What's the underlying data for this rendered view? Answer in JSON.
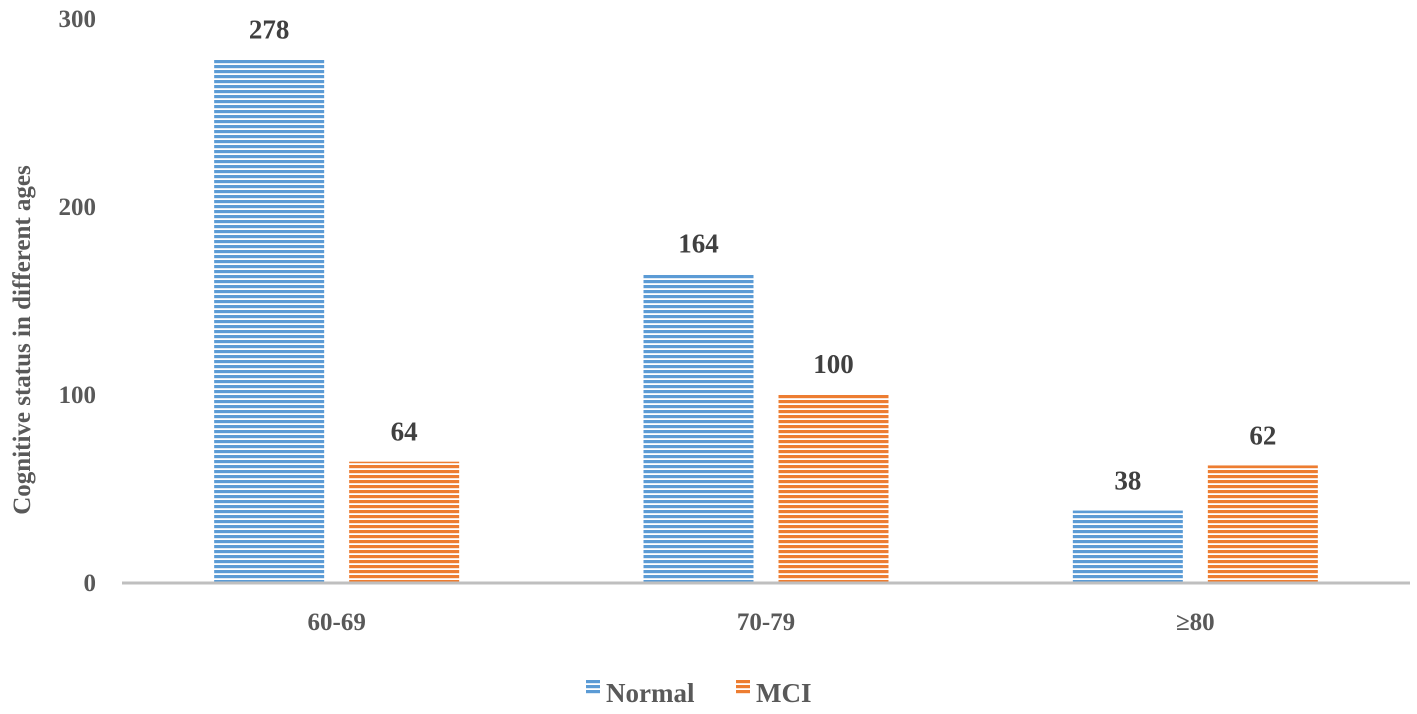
{
  "chart_data": {
    "type": "bar",
    "title": "",
    "xlabel": "",
    "ylabel": "Cognitive status in different ages",
    "categories": [
      "60-69",
      "70-79",
      "≥80"
    ],
    "series": [
      {
        "name": "Normal",
        "values": [
          278,
          164,
          38
        ]
      },
      {
        "name": "MCI",
        "values": [
          64,
          100,
          62
        ]
      }
    ],
    "ylim": [
      0,
      300
    ],
    "yticks": [
      0,
      100,
      200,
      300
    ],
    "grid": false,
    "legend": "bottom-center",
    "colors": {
      "Normal": "#5b9bd5",
      "MCI": "#ed7d31",
      "axis": "#bfbfbf",
      "text": "#595959"
    }
  }
}
